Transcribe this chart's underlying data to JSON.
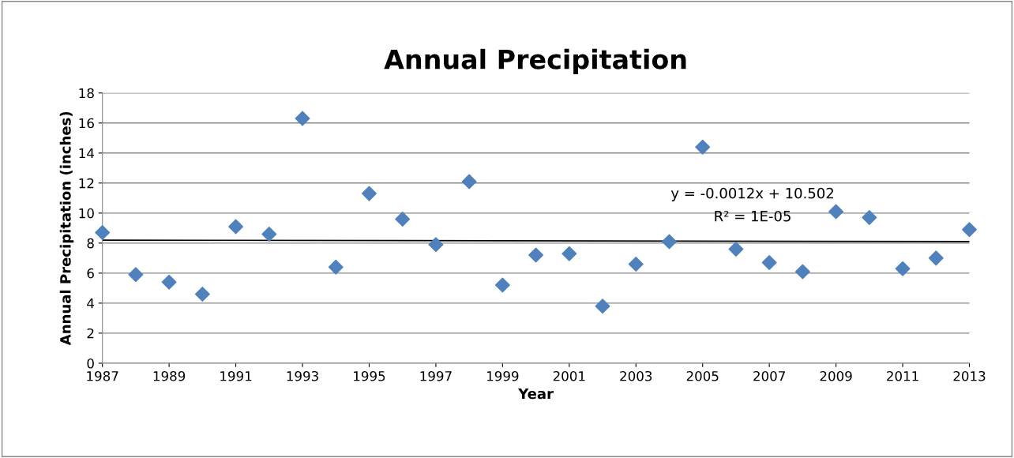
{
  "chart_data": {
    "type": "scatter",
    "title": "Annual Precipitation",
    "xlabel": "Year",
    "ylabel": "Annual Precipitation (inches)",
    "series": [
      {
        "color": "#4f81bd",
        "marker": "diamond",
        "x": [
          1987,
          1988,
          1989,
          1990,
          1991,
          1992,
          1993,
          1994,
          1995,
          1996,
          1997,
          1998,
          1999,
          2000,
          2001,
          2002,
          2003,
          2004,
          2005,
          2006,
          2007,
          2008,
          2009,
          2010,
          2011,
          2012,
          2013
        ],
        "values": [
          8.7,
          5.9,
          5.4,
          4.6,
          9.1,
          8.6,
          16.3,
          6.4,
          11.3,
          9.6,
          7.9,
          12.1,
          5.2,
          7.2,
          7.3,
          3.8,
          6.6,
          8.1,
          14.4,
          7.6,
          6.7,
          6.1,
          10.1,
          9.7,
          6.3,
          7.0,
          8.9
        ]
      },
      {
        "type": "line",
        "color": "#000000",
        "marker": "none",
        "x": [
          1987,
          2013
        ],
        "values": [
          8.2,
          8.1
        ]
      }
    ],
    "annotations": [
      "y = -0.0012x + 10.502",
      "R² = 1E-05"
    ],
    "xlim": [
      1987,
      2013
    ],
    "xticks": [
      1987,
      1989,
      1991,
      1993,
      1995,
      1997,
      1999,
      2001,
      2003,
      2005,
      2007,
      2009,
      2011,
      2013
    ],
    "ylim": [
      0,
      18
    ],
    "yticks": [
      0,
      2,
      4,
      6,
      8,
      10,
      12,
      14,
      16,
      18
    ],
    "grid": "y",
    "legend": false
  }
}
